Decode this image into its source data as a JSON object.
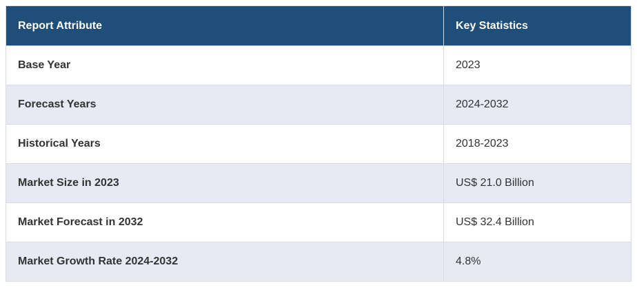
{
  "colors": {
    "header_bg": "#1f4e79",
    "header_text": "#ffffff",
    "row_alt_bg": "#e7e9f5",
    "row_bg": "#ffffff",
    "text": "#333333",
    "border": "#d9dbe0"
  },
  "table": {
    "headers": [
      "Report Attribute",
      "Key Statistics"
    ],
    "rows": [
      {
        "attribute": "Base Year",
        "value": "2023"
      },
      {
        "attribute": "Forecast Years",
        "value": "2024-2032"
      },
      {
        "attribute": "Historical Years",
        "value": "2018-2023"
      },
      {
        "attribute": "Market Size in 2023",
        "value": "US$ 21.0 Billion"
      },
      {
        "attribute": "Market Forecast in 2032",
        "value": "US$ 32.4 Billion"
      },
      {
        "attribute": "Market Growth Rate 2024-2032",
        "value": "4.8%"
      }
    ]
  }
}
